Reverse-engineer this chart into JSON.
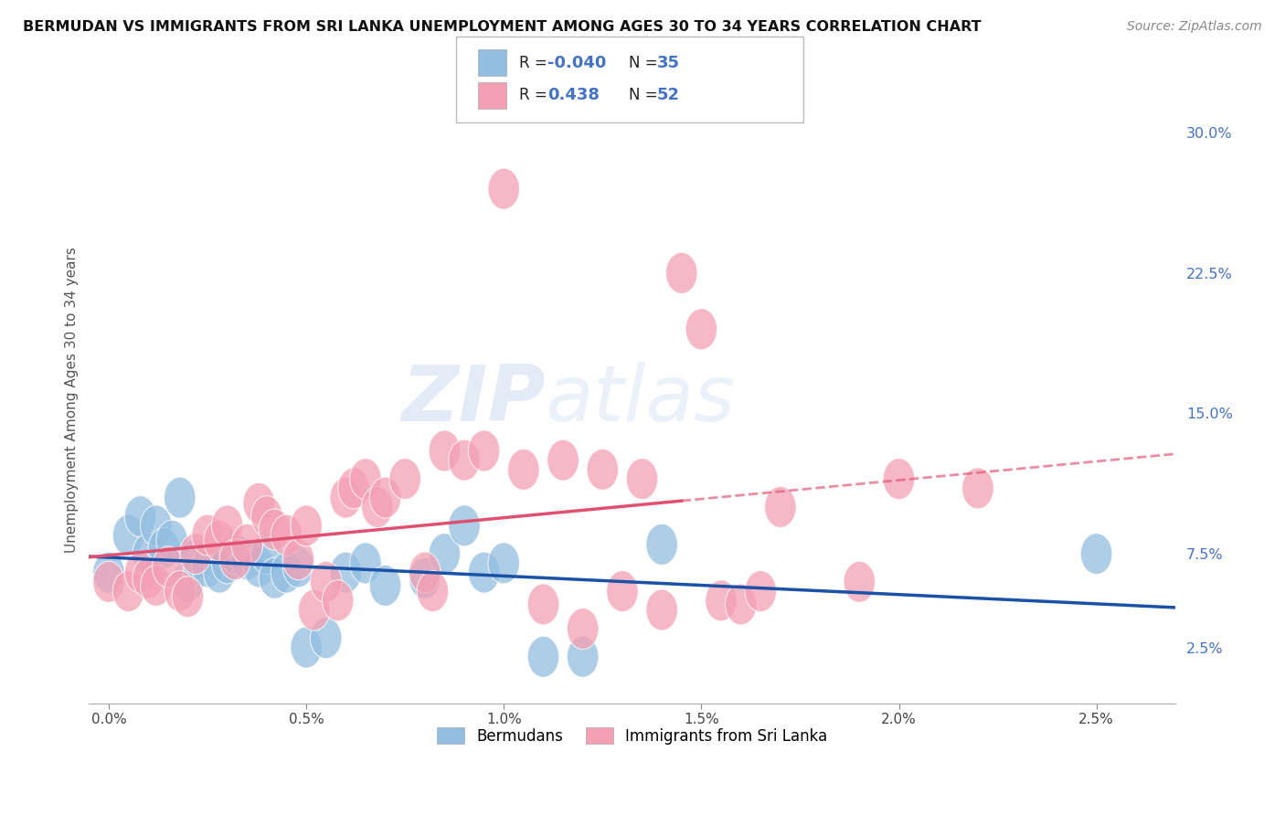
{
  "title": "BERMUDAN VS IMMIGRANTS FROM SRI LANKA UNEMPLOYMENT AMONG AGES 30 TO 34 YEARS CORRELATION CHART",
  "source": "Source: ZipAtlas.com",
  "ylabel": "Unemployment Among Ages 30 to 34 years",
  "right_yticks": [
    "2.5%",
    "7.5%",
    "15.0%",
    "22.5%",
    "30.0%"
  ],
  "right_ytick_vals": [
    2.5,
    7.5,
    15.0,
    22.5,
    30.0
  ],
  "bermudans_color": "#93bde0",
  "srilanka_color": "#f4a0b4",
  "bermudans_line_color": "#1a52a8",
  "srilanka_line_color": "#e05070",
  "watermark_zip": "ZIP",
  "watermark_atlas": "atlas",
  "xlim": [
    -0.05,
    2.7
  ],
  "ylim": [
    -0.5,
    32.0
  ],
  "x_tick_vals": [
    0.0,
    0.5,
    1.0,
    1.5,
    2.0,
    2.5
  ],
  "background_color": "#ffffff",
  "grid_color": "#dddddd",
  "bermudans_x": [
    0.0,
    0.05,
    0.08,
    0.1,
    0.12,
    0.14,
    0.16,
    0.18,
    0.2,
    0.22,
    0.25,
    0.28,
    0.3,
    0.32,
    0.35,
    0.38,
    0.4,
    0.42,
    0.45,
    0.48,
    0.5,
    0.55,
    0.6,
    0.65,
    0.7,
    0.8,
    0.85,
    0.9,
    0.95,
    1.0,
    1.1,
    1.2,
    1.4,
    2.5
  ],
  "bermudans_y": [
    6.5,
    8.5,
    9.5,
    7.5,
    9.0,
    7.8,
    8.2,
    10.5,
    6.0,
    7.2,
    6.8,
    6.5,
    7.0,
    7.5,
    7.2,
    6.8,
    7.5,
    6.2,
    6.5,
    6.8,
    2.5,
    3.0,
    6.5,
    7.0,
    5.8,
    6.2,
    7.5,
    9.0,
    6.5,
    7.0,
    2.0,
    2.0,
    8.0,
    7.5
  ],
  "srilanka_x": [
    0.0,
    0.05,
    0.08,
    0.1,
    0.12,
    0.15,
    0.18,
    0.2,
    0.22,
    0.25,
    0.28,
    0.3,
    0.32,
    0.35,
    0.38,
    0.4,
    0.42,
    0.45,
    0.48,
    0.5,
    0.52,
    0.55,
    0.58,
    0.6,
    0.62,
    0.65,
    0.68,
    0.7,
    0.75,
    0.8,
    0.82,
    0.85,
    0.9,
    0.95,
    1.0,
    1.05,
    1.1,
    1.15,
    1.2,
    1.25,
    1.3,
    1.35,
    1.4,
    1.45,
    1.5,
    1.55,
    1.6,
    1.65,
    1.7,
    1.9,
    2.0,
    2.2
  ],
  "srilanka_y": [
    6.0,
    5.5,
    6.5,
    6.2,
    5.8,
    6.8,
    5.5,
    5.2,
    7.5,
    8.5,
    8.2,
    9.0,
    7.2,
    8.0,
    10.2,
    9.5,
    8.8,
    8.5,
    7.2,
    9.0,
    4.5,
    6.0,
    5.0,
    10.5,
    11.0,
    11.5,
    10.0,
    10.5,
    11.5,
    6.5,
    5.5,
    13.0,
    12.5,
    13.0,
    27.0,
    12.0,
    4.8,
    12.5,
    3.5,
    12.0,
    5.5,
    11.5,
    4.5,
    22.5,
    19.5,
    5.0,
    4.8,
    5.5,
    10.0,
    6.0,
    11.5,
    11.0
  ]
}
